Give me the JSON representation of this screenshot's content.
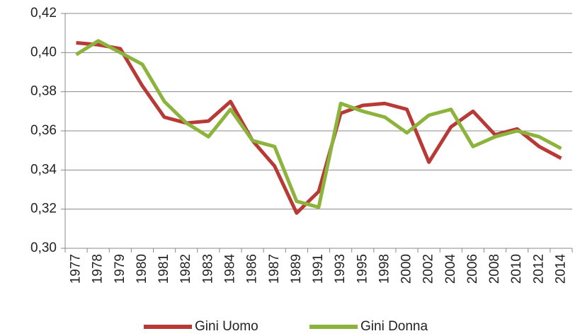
{
  "chart_data": {
    "type": "line",
    "categories": [
      "1977",
      "1978",
      "1979",
      "1980",
      "1981",
      "1982",
      "1983",
      "1984",
      "1986",
      "1987",
      "1989",
      "1991",
      "1993",
      "1995",
      "1998",
      "2000",
      "2002",
      "2004",
      "2006",
      "2008",
      "2010",
      "2012",
      "2014"
    ],
    "series": [
      {
        "name": "Gini Uomo",
        "color": "#b83a36",
        "values": [
          0.405,
          0.404,
          0.402,
          0.383,
          0.367,
          0.364,
          0.365,
          0.375,
          0.355,
          0.342,
          0.318,
          0.329,
          0.369,
          0.373,
          0.374,
          0.371,
          0.344,
          0.362,
          0.37,
          0.358,
          0.361,
          0.352,
          0.346
        ]
      },
      {
        "name": "Gini Donna",
        "color": "#8cb43c",
        "values": [
          0.399,
          0.406,
          0.4,
          0.394,
          0.375,
          0.364,
          0.357,
          0.371,
          0.355,
          0.352,
          0.324,
          0.321,
          0.374,
          0.37,
          0.367,
          0.359,
          0.368,
          0.371,
          0.352,
          0.357,
          0.36,
          0.357,
          0.351
        ]
      }
    ],
    "ylim": [
      0.3,
      0.42
    ],
    "yticks": [
      {
        "value": 0.3,
        "label": "0,30"
      },
      {
        "value": 0.32,
        "label": "0,32"
      },
      {
        "value": 0.34,
        "label": "0,34"
      },
      {
        "value": 0.36,
        "label": "0,36"
      },
      {
        "value": 0.38,
        "label": "0,38"
      },
      {
        "value": 0.4,
        "label": "0,40"
      },
      {
        "value": 0.42,
        "label": "0,42"
      }
    ],
    "grid": true,
    "legend": "bottom"
  }
}
